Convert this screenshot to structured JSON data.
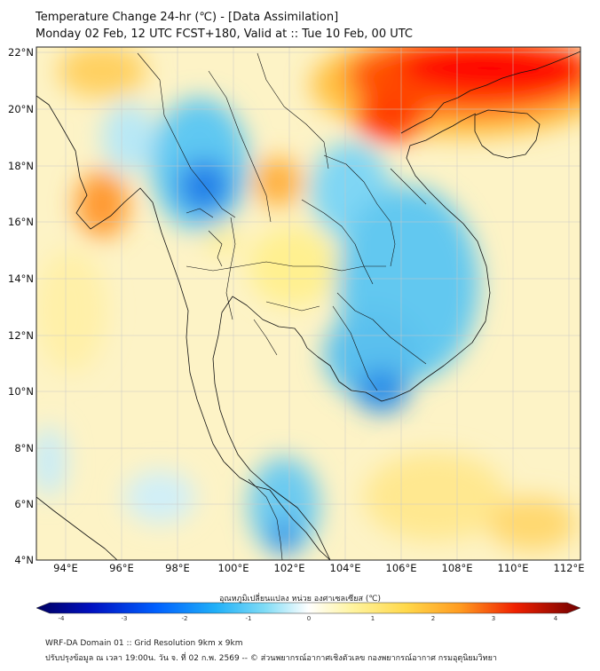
{
  "header": {
    "title": "Temperature Change 24-hr (℃) - [Data Assimilation]",
    "subtitle": "Monday 02 Feb, 12 UTC FCST+180, Valid at :: Tue 10 Feb, 00 UTC"
  },
  "axes": {
    "lat_labels": [
      "22°N",
      "20°N",
      "18°N",
      "16°N",
      "14°N",
      "12°N",
      "10°N",
      "8°N",
      "6°N",
      "4°N"
    ],
    "lon_labels": [
      "94°E",
      "96°E",
      "98°E",
      "100°E",
      "102°E",
      "104°E",
      "106°E",
      "108°E",
      "110°E",
      "112°E"
    ]
  },
  "colorbar": {
    "title": "อุณหภูมิเปลี่ยนแปลง หน่วย องศาเซลเซียส (℃)",
    "ticks": [
      "-4",
      "-3",
      "-2",
      "-1",
      "0",
      "1",
      "2",
      "3",
      "4"
    ],
    "colors": [
      "#000080",
      "#0010c8",
      "#0040ff",
      "#1f8fff",
      "#3ec8f0",
      "#9fe6f8",
      "#ffffff",
      "#fff4a0",
      "#ffe066",
      "#ffb030",
      "#ff6000",
      "#e00000",
      "#800000"
    ]
  },
  "footer": {
    "line1": "WRF-DA Domain 01 :: Grid Resolution 9km x 9km",
    "line2": "ปรับปรุงข้อมูล ณ เวลา 19:00น. วัน จ. ที่ 02 ก.พ. 2569 -- © ส่วนพยากรณ์อากาศเชิงตัวเลข กองพยากรณ์อากาศ กรมอุตุนิยมวิทยา"
  }
}
